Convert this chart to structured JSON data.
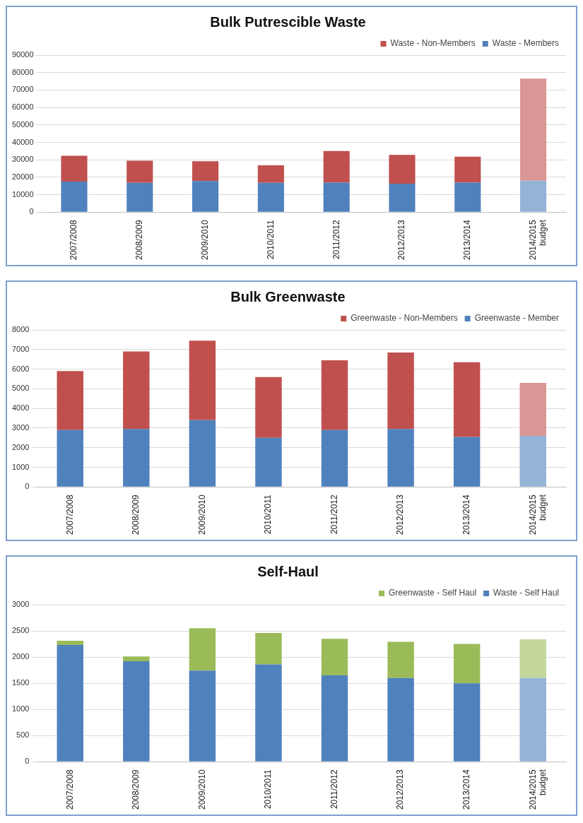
{
  "chart_data": [
    {
      "type": "bar",
      "title": "Bulk Putrescible Waste",
      "categories": [
        "2007/2008",
        "2008/2009",
        "2009/2010",
        "2010/2011",
        "2011/2012",
        "2012/2013",
        "2013/2014",
        "2014/2015 budget"
      ],
      "stacked": true,
      "ylim": [
        0,
        90000
      ],
      "yticks": [
        0,
        10000,
        20000,
        30000,
        40000,
        50000,
        60000,
        70000,
        80000,
        90000
      ],
      "grid": "y",
      "legend": "top right",
      "series": [
        {
          "name": "Waste - Members",
          "color": "#4f81bd",
          "colors": [
            "#4f81bd",
            "#4f81bd",
            "#4f81bd",
            "#4f81bd",
            "#4f81bd",
            "#4f81bd",
            "#4f81bd",
            "#95b3d7"
          ],
          "values": [
            17500,
            16800,
            17800,
            16800,
            16900,
            16300,
            16900,
            18000
          ]
        },
        {
          "name": "Waste - Non-Members",
          "color": "#c0504d",
          "colors": [
            "#c0504d",
            "#c0504d",
            "#c0504d",
            "#c0504d",
            "#c0504d",
            "#c0504d",
            "#c0504d",
            "#d99694"
          ],
          "values": [
            14800,
            12700,
            11400,
            10000,
            18100,
            16500,
            14900,
            58500
          ]
        }
      ]
    },
    {
      "type": "bar",
      "title": "Bulk Greenwaste",
      "categories": [
        "2007/2008",
        "2008/2009",
        "2009/2010",
        "2010/2011",
        "2011/2012",
        "2012/2013",
        "2013/2014",
        "2014/2015 budget"
      ],
      "stacked": true,
      "ylim": [
        0,
        8000
      ],
      "yticks": [
        0,
        1000,
        2000,
        3000,
        4000,
        5000,
        6000,
        7000,
        8000
      ],
      "grid": "y",
      "legend": "top right",
      "series": [
        {
          "name": "Greenwaste - Member",
          "color": "#4f81bd",
          "colors": [
            "#4f81bd",
            "#4f81bd",
            "#4f81bd",
            "#4f81bd",
            "#4f81bd",
            "#4f81bd",
            "#4f81bd",
            "#95b3d7"
          ],
          "values": [
            2900,
            2950,
            3400,
            2500,
            2900,
            2950,
            2550,
            2600
          ]
        },
        {
          "name": "Greenwaste - Non-Members",
          "color": "#c0504d",
          "colors": [
            "#c0504d",
            "#c0504d",
            "#c0504d",
            "#c0504d",
            "#c0504d",
            "#c0504d",
            "#c0504d",
            "#d99694"
          ],
          "values": [
            3000,
            3950,
            4050,
            3100,
            3550,
            3900,
            3800,
            2700
          ]
        }
      ]
    },
    {
      "type": "bar",
      "title": "Self-Haul",
      "categories": [
        "2007/2008",
        "2008/2009",
        "2009/2010",
        "2010/2011",
        "2011/2012",
        "2012/2013",
        "2013/2014",
        "2014/2015 budget"
      ],
      "stacked": true,
      "ylim": [
        0,
        3000
      ],
      "yticks": [
        0,
        500,
        1000,
        1500,
        2000,
        2500,
        3000
      ],
      "grid": "y",
      "legend": "top right",
      "series": [
        {
          "name": "Waste - Self Haul",
          "color": "#4f81bd",
          "colors": [
            "#4f81bd",
            "#4f81bd",
            "#4f81bd",
            "#4f81bd",
            "#4f81bd",
            "#4f81bd",
            "#4f81bd",
            "#95b3d7"
          ],
          "values": [
            2230,
            1920,
            1740,
            1860,
            1650,
            1600,
            1500,
            1600
          ]
        },
        {
          "name": "Greenwaste - Self Haul",
          "color": "#9bbb59",
          "colors": [
            "#9bbb59",
            "#9bbb59",
            "#9bbb59",
            "#9bbb59",
            "#9bbb59",
            "#9bbb59",
            "#9bbb59",
            "#c3d69b"
          ],
          "values": [
            80,
            90,
            810,
            600,
            700,
            690,
            750,
            740
          ]
        }
      ]
    }
  ]
}
